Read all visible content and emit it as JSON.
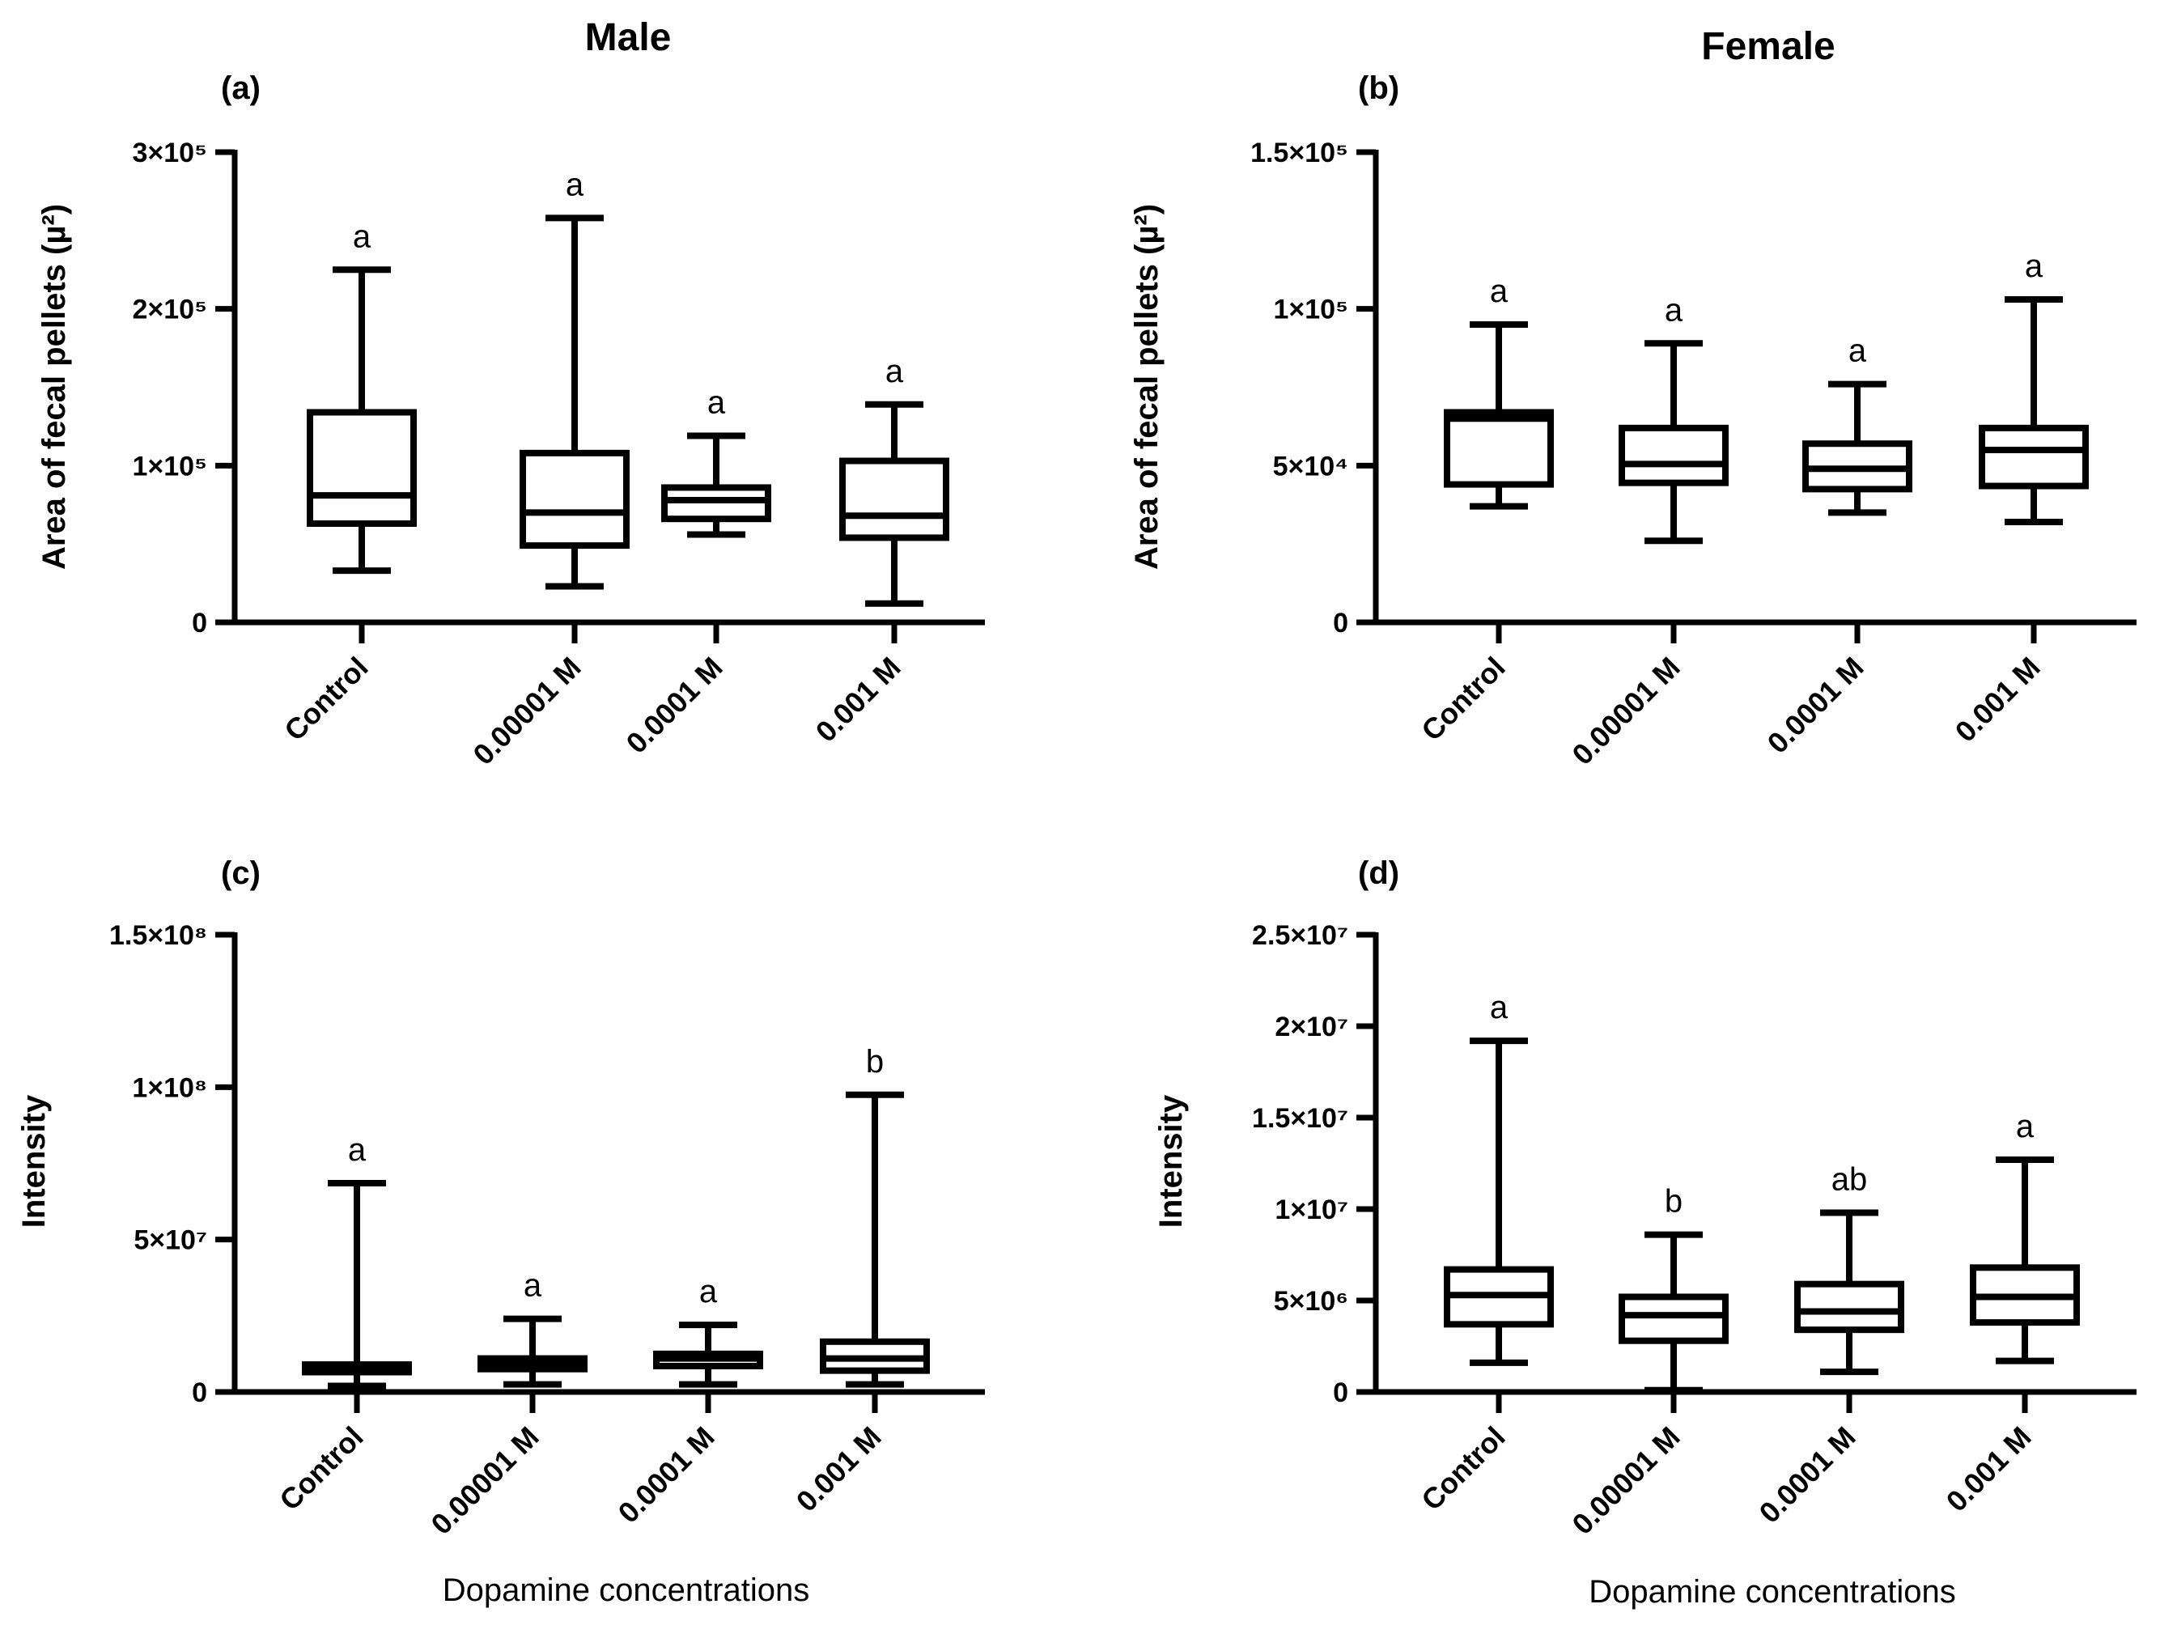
{
  "figure": {
    "col_titles": [
      "Male",
      "Female"
    ],
    "xlabel": "Dopamine concentrations"
  },
  "chart_data": [
    {
      "panel": "(a)",
      "type": "box",
      "title": "Male",
      "ylabel": "Area of fecal pellets (µ²)",
      "xlabel": "",
      "categories": [
        "Control",
        "0.00001 M",
        "0.0001 M",
        "0.001 M"
      ],
      "ylim": [
        0,
        300000
      ],
      "yticks": [
        0,
        100000,
        200000,
        300000
      ],
      "ytick_labels": [
        "0",
        "1×10⁵",
        "2×10⁵",
        "3×10⁵"
      ],
      "boxes": [
        {
          "min": 33000,
          "q1": 63000,
          "median": 81000,
          "q3": 134000,
          "max": 225000,
          "letter": "a"
        },
        {
          "min": 23000,
          "q1": 49000,
          "median": 70000,
          "q3": 108000,
          "max": 258000,
          "letter": "a"
        },
        {
          "min": 56000,
          "q1": 66000,
          "median": 78000,
          "q3": 86000,
          "max": 119000,
          "letter": "a"
        },
        {
          "min": 12000,
          "q1": 54000,
          "median": 68000,
          "q3": 103000,
          "max": 139000,
          "letter": "a"
        }
      ]
    },
    {
      "panel": "(b)",
      "type": "box",
      "title": "Female",
      "ylabel": "Area of fecal pellets (µ²)",
      "xlabel": "",
      "categories": [
        "Control",
        "0.00001 M",
        "0.0001 M",
        "0.001 M"
      ],
      "ylim": [
        0,
        150000
      ],
      "yticks": [
        0,
        50000,
        100000,
        150000
      ],
      "ytick_labels": [
        "0",
        "5×10⁴",
        "1×10⁵",
        "1.5×10⁵"
      ],
      "boxes": [
        {
          "min": 37000,
          "q1": 44000,
          "median": 65000,
          "q3": 67000,
          "max": 95000,
          "letter": "a"
        },
        {
          "min": 26000,
          "q1": 44500,
          "median": 50500,
          "q3": 62000,
          "max": 89000,
          "letter": "a"
        },
        {
          "min": 35000,
          "q1": 42500,
          "median": 49000,
          "q3": 57000,
          "max": 76000,
          "letter": "a"
        },
        {
          "min": 32000,
          "q1": 43500,
          "median": 55000,
          "q3": 62000,
          "max": 103000,
          "letter": "a"
        }
      ]
    },
    {
      "panel": "(c)",
      "type": "box",
      "title": "",
      "ylabel": "Intensity",
      "xlabel": "Dopamine concentrations",
      "categories": [
        "Control",
        "0.00001 M",
        "0.0001 M",
        "0.001 M"
      ],
      "ylim": [
        0,
        150000000
      ],
      "yticks": [
        0,
        50000000,
        100000000,
        150000000
      ],
      "ytick_labels": [
        "0",
        "5×10⁷",
        "1×10⁸",
        "1.5×10⁸"
      ],
      "boxes": [
        {
          "min": 2000000,
          "q1": 6500000,
          "median": 8000000,
          "q3": 9000000,
          "max": 68500000,
          "letter": "a"
        },
        {
          "min": 2500000,
          "q1": 7500000,
          "median": 9500000,
          "q3": 11000000,
          "max": 24000000,
          "letter": "a"
        },
        {
          "min": 2500000,
          "q1": 8500000,
          "median": 11000000,
          "q3": 12500000,
          "max": 22000000,
          "letter": "a"
        },
        {
          "min": 2500000,
          "q1": 7000000,
          "median": 11000000,
          "q3": 16500000,
          "max": 97500000,
          "letter": "b"
        }
      ]
    },
    {
      "panel": "(d)",
      "type": "box",
      "title": "",
      "ylabel": "Intensity",
      "xlabel": "Dopamine concentrations",
      "categories": [
        "Control",
        "0.00001 M",
        "0.0001 M",
        "0.001 M"
      ],
      "ylim": [
        0,
        25000000
      ],
      "yticks": [
        0,
        5000000,
        10000000,
        15000000,
        20000000,
        25000000
      ],
      "ytick_labels": [
        "0",
        "5×10⁶",
        "1×10⁷",
        "1.5×10⁷",
        "2×10⁷",
        "2.5×10⁷"
      ],
      "boxes": [
        {
          "min": 1600000,
          "q1": 3700000,
          "median": 5300000,
          "q3": 6700000,
          "max": 19200000,
          "letter": "a"
        },
        {
          "min": 100000,
          "q1": 2800000,
          "median": 4200000,
          "q3": 5200000,
          "max": 8600000,
          "letter": "b"
        },
        {
          "min": 1100000,
          "q1": 3400000,
          "median": 4400000,
          "q3": 5900000,
          "max": 9800000,
          "letter": "ab"
        },
        {
          "min": 1700000,
          "q1": 3800000,
          "median": 5200000,
          "q3": 6800000,
          "max": 12700000,
          "letter": "a"
        }
      ]
    }
  ]
}
